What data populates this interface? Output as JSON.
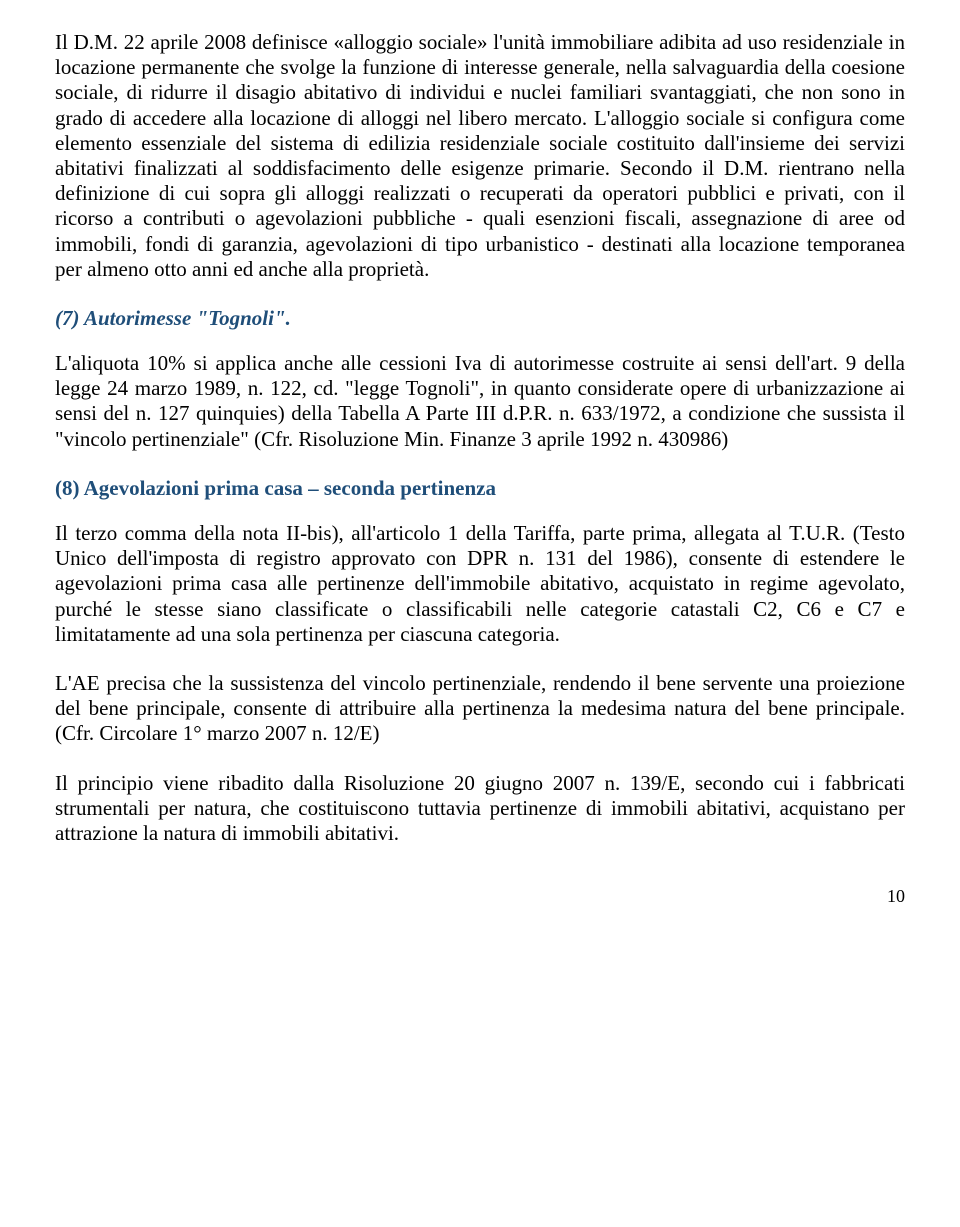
{
  "colors": {
    "heading": "#1F4E79",
    "text": "#000000",
    "background": "#ffffff"
  },
  "typography": {
    "body_font": "Times New Roman",
    "body_size_pt": 16,
    "heading_size_pt": 16
  },
  "para1": "Il D.M. 22 aprile 2008 definisce «alloggio sociale» l'unità immobiliare adibita ad uso residenziale in locazione permanente che svolge la funzione di interesse generale, nella salvaguardia della coesione sociale, di ridurre il disagio abitativo di individui e nuclei familiari svantaggiati, che non sono in grado di accedere alla locazione di alloggi nel libero mercato. L'alloggio sociale si configura come elemento essenziale del sistema di edilizia residenziale sociale costituito dall'insieme dei servizi abitativi finalizzati al soddisfacimento delle esigenze primarie. Secondo il D.M. rientrano nella definizione di cui sopra gli alloggi realizzati o recuperati da operatori pubblici e privati, con il ricorso a contributi o agevolazioni pubbliche - quali esenzioni fiscali, assegnazione di aree od immobili, fondi di garanzia, agevolazioni di tipo urbanistico - destinati alla locazione temporanea per almeno otto anni ed anche alla proprietà.",
  "heading7": "(7) Autorimesse \"Tognoli\".",
  "para2": "L'aliquota 10% si applica anche alle cessioni Iva di autorimesse costruite ai sensi dell'art. 9 della legge 24 marzo 1989, n. 122, cd. \"legge Tognoli\", in quanto considerate opere di urbanizzazione ai sensi del n. 127 quinquies) della Tabella A Parte III d.P.R. n. 633/1972, a condizione che sussista il \"vincolo pertinenziale\" (Cfr. Risoluzione Min. Finanze 3 aprile 1992 n. 430986)",
  "heading8": "(8) Agevolazioni prima casa – seconda pertinenza",
  "para3": "Il terzo comma della nota II-bis), all'articolo 1 della Tariffa, parte prima, allegata al T.U.R. (Testo Unico dell'imposta di registro approvato con DPR n. 131 del 1986), consente di estendere le agevolazioni prima casa alle pertinenze dell'immobile abitativo, acquistato in regime agevolato, purché le stesse siano classificate o classificabili nelle categorie catastali C2, C6 e C7 e limitatamente ad una sola pertinenza per ciascuna categoria.",
  "para4": "L'AE precisa che la sussistenza del vincolo pertinenziale, rendendo il bene servente una proiezione del bene principale, consente di attribuire alla pertinenza la medesima natura del bene principale. (Cfr. Circolare 1° marzo 2007 n. 12/E)",
  "para5": "Il principio viene ribadito dalla Risoluzione 20 giugno 2007 n. 139/E,  secondo cui i fabbricati strumentali per natura, che costituiscono tuttavia pertinenze di immobili abitativi, acquistano per attrazione la natura di immobili abitativi.",
  "page_number": "10"
}
